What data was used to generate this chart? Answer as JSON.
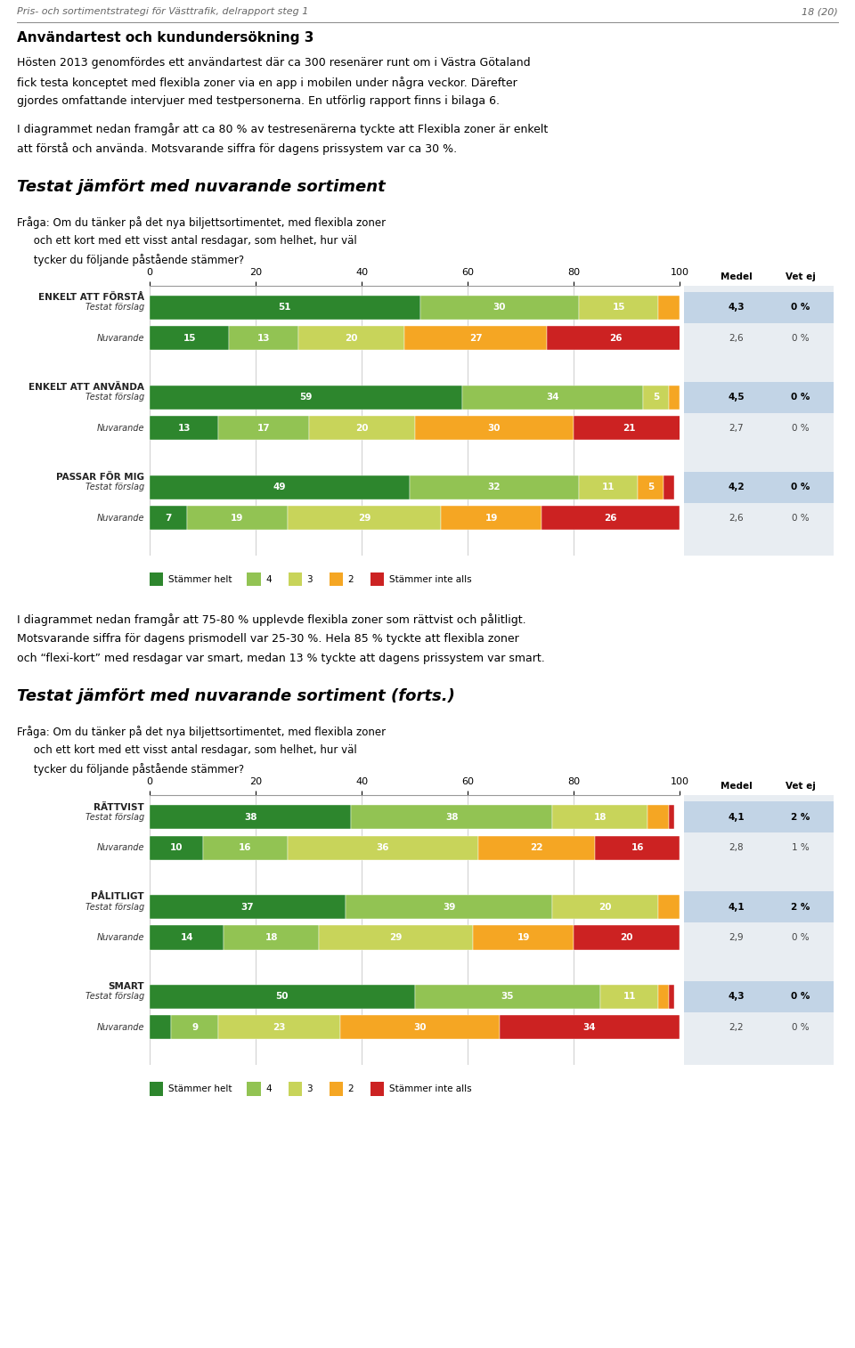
{
  "page_header": "Pris- och sortimentstrategi för Västtrafik, delrapport steg 1",
  "page_number": "18 (20)",
  "section_title": "Användartest och kundundersökning 3",
  "body_text1_line1": "Hösten 2013 genomfördes ett användartest där ca 300 resenärer runt om i Västra Götaland",
  "body_text1_line2": "fick testa konceptet med flexibla zoner via en app i mobilen under några veckor. Därefter",
  "body_text1_line3": "gjordes omfattande intervjuer med testpersonerna. En utförlig rapport finns i bilaga 6.",
  "body_text2_line1": "I diagrammet nedan framgår att ca 80 % av testresenärerna tyckte att Flexibla zoner är enkelt",
  "body_text2_line2": "att förstå och använda. Motsvarande siffra för dagens prissystem var ca 30 %.",
  "chart1_title": "Testat jämfört med nuvarande sortiment",
  "chart1_q1": "Fråga: Om du tänker på det nya biljettsortimentet, med flexibla zoner",
  "chart1_q2": "     och ett kort med ett visst antal resdagar, som helhet, hur väl",
  "chart1_q3": "     tycker du följande påstående stämmer?",
  "chart1_categories": [
    "ENKELT ATT FÖRSTÅ",
    "ENKELT ATT ANVÄNDA",
    "PASSAR FÖR MIG"
  ],
  "chart1_data": {
    "ENKELT ATT FÖRSTÅ": {
      "Testat förslag": [
        51,
        30,
        15,
        4,
        0
      ],
      "Nuvarande": [
        15,
        13,
        20,
        27,
        26
      ]
    },
    "ENKELT ATT ANVÄNDA": {
      "Testat förslag": [
        59,
        34,
        5,
        2,
        0
      ],
      "Nuvarande": [
        13,
        17,
        20,
        30,
        21
      ]
    },
    "PASSAR FÖR MIG": {
      "Testat förslag": [
        49,
        32,
        11,
        5,
        2
      ],
      "Nuvarande": [
        7,
        19,
        29,
        19,
        26
      ]
    }
  },
  "chart1_medel": {
    "ENKELT ATT FÖRSTÅ": {
      "Testat förslag": "4,3",
      "Nuvarande": "2,6"
    },
    "ENKELT ATT ANVÄNDA": {
      "Testat förslag": "4,5",
      "Nuvarande": "2,7"
    },
    "PASSAR FÖR MIG": {
      "Testat förslag": "4,2",
      "Nuvarande": "2,6"
    }
  },
  "chart1_vetej": {
    "ENKELT ATT FÖRSTÅ": {
      "Testat förslag": "0 %",
      "Nuvarande": "0 %"
    },
    "ENKELT ATT ANVÄNDA": {
      "Testat förslag": "0 %",
      "Nuvarande": "0 %"
    },
    "PASSAR FÖR MIG": {
      "Testat förslag": "0 %",
      "Nuvarande": "0 %"
    }
  },
  "mid_text_line1": "I diagrammet nedan framgår att 75-80 % upplevde flexibla zoner som rättvist och pålitligt.",
  "mid_text_line2": "Motsvarande siffra för dagens prismodell var 25-30 %. Hela 85 % tyckte att flexibla zoner",
  "mid_text_line3": "och “flexi-kort” med resdagar var smart, medan 13 % tyckte att dagens prissystem var smart.",
  "chart2_title": "Testat jämfört med nuvarande sortiment (forts.)",
  "chart2_q1": "Fråga: Om du tänker på det nya biljettsortimentet, med flexibla zoner",
  "chart2_q2": "     och ett kort med ett visst antal resdagar, som helhet, hur väl",
  "chart2_q3": "     tycker du följande påstående stämmer?",
  "chart2_categories": [
    "RÄTTVIST",
    "PÅLITLIGT",
    "SMART"
  ],
  "chart2_data": {
    "RÄTTVIST": {
      "Testat förslag": [
        38,
        38,
        18,
        4,
        1
      ],
      "Nuvarande": [
        10,
        16,
        36,
        22,
        16
      ]
    },
    "PÅLITLIGT": {
      "Testat förslag": [
        37,
        39,
        20,
        4,
        0
      ],
      "Nuvarande": [
        14,
        18,
        29,
        19,
        20
      ]
    },
    "SMART": {
      "Testat förslag": [
        50,
        35,
        11,
        2,
        1
      ],
      "Nuvarande": [
        4,
        9,
        23,
        30,
        34
      ]
    }
  },
  "chart2_medel": {
    "RÄTTVIST": {
      "Testat förslag": "4,1",
      "Nuvarande": "2,8"
    },
    "PÅLITLIGT": {
      "Testat förslag": "4,1",
      "Nuvarande": "2,9"
    },
    "SMART": {
      "Testat förslag": "4,3",
      "Nuvarande": "2,2"
    }
  },
  "chart2_vetej": {
    "RÄTTVIST": {
      "Testat förslag": "2 %",
      "Nuvarande": "1 %"
    },
    "PÅLITLIGT": {
      "Testat förslag": "2 %",
      "Nuvarande": "0 %"
    },
    "SMART": {
      "Testat förslag": "0 %",
      "Nuvarande": "0 %"
    }
  },
  "colors": {
    "stammer_helt": "#2D862D",
    "4": "#92C353",
    "3": "#C8D45A",
    "2": "#F5A623",
    "stammer_inte_alls": "#CC2222"
  },
  "legend_labels": [
    "Stämmer helt",
    "4",
    "3",
    "2",
    "Stämmer inte alls"
  ],
  "bg_color": "#FFFFFF",
  "text_color": "#000000",
  "table_highlight_bg": "#C5D5E5",
  "table_normal_bg": "#E8EEF4"
}
